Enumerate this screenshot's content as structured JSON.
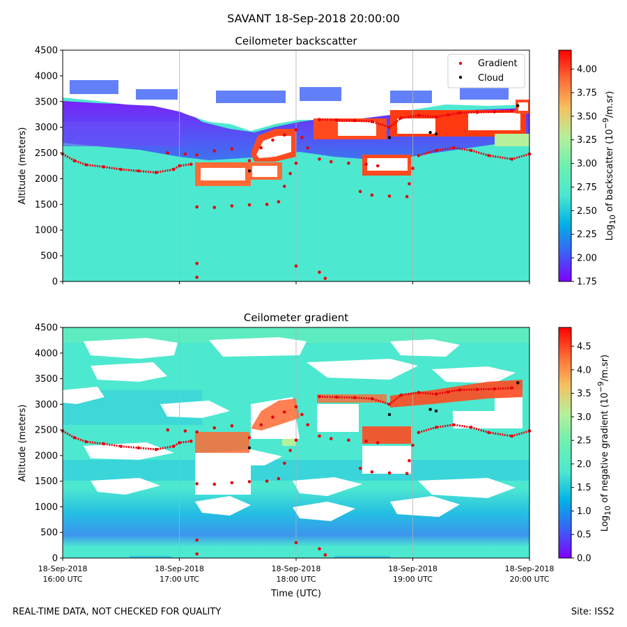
{
  "figure": {
    "title": "SAVANT 18-Sep-2018 20:00:00",
    "footer_left": "REAL-TIME DATA, NOT CHECKED FOR QUALITY",
    "footer_right": "Site: ISS2",
    "x_axis_label": "Time (UTC)"
  },
  "legend": {
    "placement": "top-right",
    "gradient_label": "Gradient",
    "cloud_label": "Cloud",
    "gradient_color": "#e8000b",
    "cloud_color": "#000000"
  },
  "colormap": [
    "#7f00ff",
    "#3a60f7",
    "#00b3e6",
    "#4de8d0",
    "#6df0b0",
    "#b5f09a",
    "#f5c060",
    "#ff6a35",
    "#ff0000"
  ],
  "x_ticks": [
    {
      "line1": "18-Sep-2018",
      "line2": "16:00 UTC",
      "hour": 16
    },
    {
      "line1": "18-Sep-2018",
      "line2": "17:00 UTC",
      "hour": 17
    },
    {
      "line1": "18-Sep-2018",
      "line2": "18:00 UTC",
      "hour": 18
    },
    {
      "line1": "18-Sep-2018",
      "line2": "19:00 UTC",
      "hour": 19
    },
    {
      "line1": "18-Sep-2018",
      "line2": "20:00 UTC",
      "hour": 20
    }
  ],
  "chart_data": [
    {
      "type": "heatmap",
      "title": "Ceilometer backscatter",
      "ylabel": "Altitude (meters)",
      "xlim": [
        16,
        20
      ],
      "ylim": [
        0,
        4500
      ],
      "yticks": [
        "0",
        "500",
        "1000",
        "1500",
        "2000",
        "2500",
        "3000",
        "3500",
        "4000",
        "4500"
      ],
      "grid": "vertical at each hour",
      "colorbar": {
        "label_prefix": "Log",
        "label_sub": "10",
        "label_mid": " of backscatter (10",
        "label_sup": "−9",
        "label_suffix": "/m.sr)",
        "range": [
          1.75,
          4.2
        ],
        "ticks": [
          "1.75",
          "2.00",
          "2.25",
          "2.50",
          "2.75",
          "3.00",
          "3.25",
          "3.50",
          "3.75",
          "4.00"
        ]
      },
      "gradient_points": [
        [
          16.0,
          2480
        ],
        [
          16.1,
          2350
        ],
        [
          16.2,
          2270
        ],
        [
          16.35,
          2230
        ],
        [
          16.5,
          2180
        ],
        [
          16.65,
          2150
        ],
        [
          16.8,
          2120
        ],
        [
          16.95,
          2180
        ],
        [
          17.0,
          2250
        ],
        [
          17.1,
          2280
        ],
        [
          16.9,
          2500
        ],
        [
          17.05,
          2480
        ],
        [
          17.15,
          2460
        ],
        [
          17.3,
          2540
        ],
        [
          17.45,
          2580
        ],
        [
          17.15,
          1450
        ],
        [
          17.3,
          1440
        ],
        [
          17.45,
          1470
        ],
        [
          17.6,
          1490
        ],
        [
          17.75,
          1500
        ],
        [
          17.85,
          1550
        ],
        [
          17.9,
          1850
        ],
        [
          17.95,
          2100
        ],
        [
          18.0,
          2300
        ],
        [
          18.05,
          2800
        ],
        [
          18.1,
          2600
        ],
        [
          18.2,
          2380
        ],
        [
          18.3,
          2330
        ],
        [
          18.45,
          2300
        ],
        [
          18.6,
          2280
        ],
        [
          18.7,
          2250
        ],
        [
          18.55,
          1750
        ],
        [
          18.65,
          1680
        ],
        [
          18.8,
          1660
        ],
        [
          18.95,
          1650
        ],
        [
          18.97,
          1900
        ],
        [
          19.0,
          2200
        ],
        [
          19.05,
          2450
        ],
        [
          19.2,
          2550
        ],
        [
          19.35,
          2600
        ],
        [
          19.5,
          2550
        ],
        [
          19.65,
          2450
        ],
        [
          19.85,
          2380
        ],
        [
          20.0,
          2480
        ],
        [
          18.2,
          3150
        ],
        [
          18.35,
          3140
        ],
        [
          18.5,
          3130
        ],
        [
          18.65,
          3110
        ],
        [
          18.8,
          3000
        ],
        [
          18.9,
          3180
        ],
        [
          19.05,
          3230
        ],
        [
          19.2,
          3200
        ],
        [
          19.3,
          3240
        ],
        [
          19.4,
          3280
        ],
        [
          19.55,
          3290
        ],
        [
          19.7,
          3300
        ],
        [
          19.85,
          3320
        ],
        [
          17.6,
          2350
        ],
        [
          17.7,
          2600
        ],
        [
          17.8,
          2750
        ],
        [
          17.9,
          2850
        ],
        [
          18.0,
          2950
        ],
        [
          17.15,
          350
        ],
        [
          17.15,
          80
        ],
        [
          18.0,
          300
        ],
        [
          18.2,
          180
        ],
        [
          18.25,
          60
        ]
      ],
      "cloud_points": [
        [
          17.6,
          2150
        ],
        [
          18.8,
          2800
        ],
        [
          19.15,
          2900
        ],
        [
          19.2,
          2870
        ],
        [
          19.9,
          3420
        ]
      ]
    },
    {
      "type": "heatmap",
      "title": "Ceilometer gradient",
      "ylabel": "Altitude (meters)",
      "xlim": [
        16,
        20
      ],
      "ylim": [
        0,
        4500
      ],
      "yticks": [
        "0",
        "500",
        "1000",
        "1500",
        "2000",
        "2500",
        "3000",
        "3500",
        "4000",
        "4500"
      ],
      "grid": "vertical at each hour",
      "colorbar": {
        "label_prefix": "Log",
        "label_sub": "10",
        "label_mid": " of negative gradient (10",
        "label_sup": "−9",
        "label_suffix": "/m.sr)",
        "range": [
          0.0,
          4.9
        ],
        "ticks": [
          "0.0",
          "0.5",
          "1.0",
          "1.5",
          "2.0",
          "2.5",
          "3.0",
          "3.5",
          "4.0",
          "4.5"
        ]
      },
      "gradient_points": [
        [
          16.0,
          2480
        ],
        [
          16.1,
          2350
        ],
        [
          16.2,
          2270
        ],
        [
          16.35,
          2230
        ],
        [
          16.5,
          2180
        ],
        [
          16.65,
          2150
        ],
        [
          16.8,
          2120
        ],
        [
          16.95,
          2180
        ],
        [
          17.0,
          2250
        ],
        [
          17.1,
          2280
        ],
        [
          16.9,
          2500
        ],
        [
          17.05,
          2480
        ],
        [
          17.15,
          2460
        ],
        [
          17.3,
          2540
        ],
        [
          17.45,
          2580
        ],
        [
          17.15,
          1450
        ],
        [
          17.3,
          1440
        ],
        [
          17.45,
          1470
        ],
        [
          17.6,
          1490
        ],
        [
          17.75,
          1500
        ],
        [
          17.85,
          1550
        ],
        [
          17.9,
          1850
        ],
        [
          17.95,
          2100
        ],
        [
          18.0,
          2300
        ],
        [
          18.05,
          2800
        ],
        [
          18.1,
          2600
        ],
        [
          18.2,
          2380
        ],
        [
          18.3,
          2330
        ],
        [
          18.45,
          2300
        ],
        [
          18.6,
          2280
        ],
        [
          18.7,
          2250
        ],
        [
          18.55,
          1750
        ],
        [
          18.65,
          1680
        ],
        [
          18.8,
          1660
        ],
        [
          18.95,
          1650
        ],
        [
          18.97,
          1900
        ],
        [
          19.0,
          2200
        ],
        [
          19.05,
          2450
        ],
        [
          19.2,
          2550
        ],
        [
          19.35,
          2600
        ],
        [
          19.5,
          2550
        ],
        [
          19.65,
          2450
        ],
        [
          19.85,
          2380
        ],
        [
          20.0,
          2480
        ],
        [
          18.2,
          3150
        ],
        [
          18.35,
          3140
        ],
        [
          18.5,
          3130
        ],
        [
          18.65,
          3110
        ],
        [
          18.8,
          3000
        ],
        [
          18.9,
          3180
        ],
        [
          19.05,
          3230
        ],
        [
          19.2,
          3200
        ],
        [
          19.3,
          3240
        ],
        [
          19.4,
          3280
        ],
        [
          19.55,
          3290
        ],
        [
          19.7,
          3300
        ],
        [
          19.85,
          3320
        ],
        [
          17.6,
          2350
        ],
        [
          17.7,
          2600
        ],
        [
          17.8,
          2750
        ],
        [
          17.9,
          2850
        ],
        [
          18.0,
          2950
        ],
        [
          17.15,
          350
        ],
        [
          17.15,
          80
        ],
        [
          18.0,
          300
        ],
        [
          18.2,
          180
        ],
        [
          18.25,
          60
        ]
      ],
      "cloud_points": [
        [
          17.6,
          2150
        ],
        [
          18.8,
          2800
        ],
        [
          19.15,
          2900
        ],
        [
          19.2,
          2870
        ],
        [
          19.9,
          3420
        ]
      ]
    }
  ]
}
